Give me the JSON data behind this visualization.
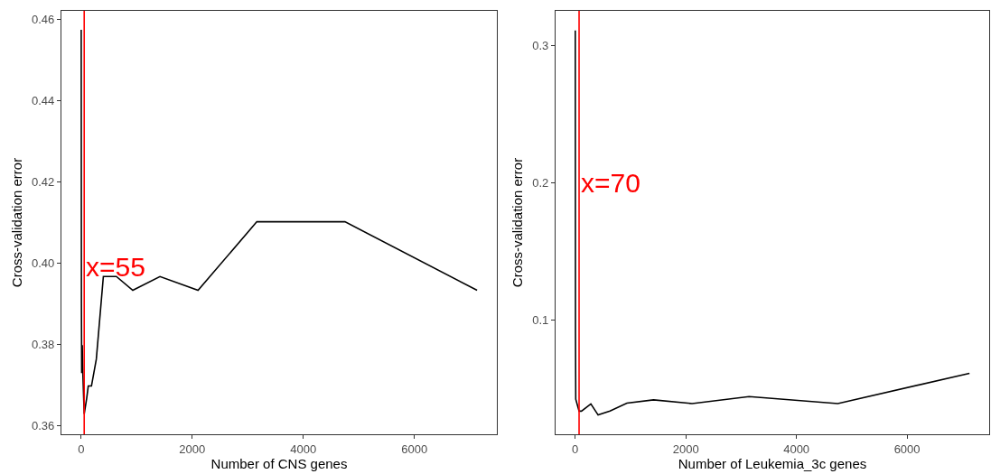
{
  "chart_data": [
    {
      "type": "line",
      "xlabel": "Number of CNS genes",
      "ylabel": "Cross-validation error",
      "series": [
        {
          "color": "#000000",
          "x": [
            1,
            5,
            10,
            20,
            30,
            55,
            100,
            128,
            186,
            273,
            400,
            634,
            930,
            1419,
            2105,
            3163,
            4750,
            7129
          ],
          "values": [
            0.4575,
            0.39,
            0.3729,
            0.3798,
            0.373,
            0.3628,
            0.3667,
            0.3697,
            0.3697,
            0.3763,
            0.3967,
            0.3967,
            0.3933,
            0.3967,
            0.3933,
            0.4102,
            0.4102,
            0.3933
          ]
        }
      ],
      "xlim": [
        -355,
        7485
      ],
      "xticks": [
        0,
        2000,
        4000,
        6000
      ],
      "ylim": [
        0.3578,
        0.4622
      ],
      "yticks": [
        0.36,
        0.38,
        {
          "value": 0.4,
          "label": "0.40"
        },
        0.42,
        0.44,
        0.46
      ],
      "ref_lines": [
        {
          "axis": "x",
          "value": 55,
          "color": "#ff0000"
        }
      ],
      "annotations": [
        {
          "text": "x=55",
          "x": 55,
          "y": 0.399
        }
      ],
      "grid": false
    },
    {
      "type": "line",
      "xlabel": "Number of Leukemia_3c genes",
      "ylabel": "Cross-validation error",
      "series": [
        {
          "color": "#000000",
          "x": [
            1,
            5,
            10,
            70,
            113,
            283,
            414,
            629,
            935,
            1416,
            2113,
            3144,
            4748,
            7129
          ],
          "values": [
            0.311,
            0.09,
            0.042,
            0.0333,
            0.0333,
            0.0386,
            0.0305,
            0.0333,
            0.0391,
            0.0415,
            0.0388,
            0.0439,
            0.0388,
            0.0609
          ]
        }
      ],
      "xlim": [
        -355,
        7485
      ],
      "xticks": [
        0,
        2000,
        4000,
        6000
      ],
      "ylim": [
        0.0164,
        0.3253
      ],
      "yticks": [
        0.1,
        0.2,
        0.3
      ],
      "ref_lines": [
        {
          "axis": "x",
          "value": 70,
          "color": "#ff0000"
        }
      ],
      "annotations": [
        {
          "text": "x=70",
          "x": 70,
          "y": 0.2
        }
      ],
      "grid": false
    }
  ]
}
